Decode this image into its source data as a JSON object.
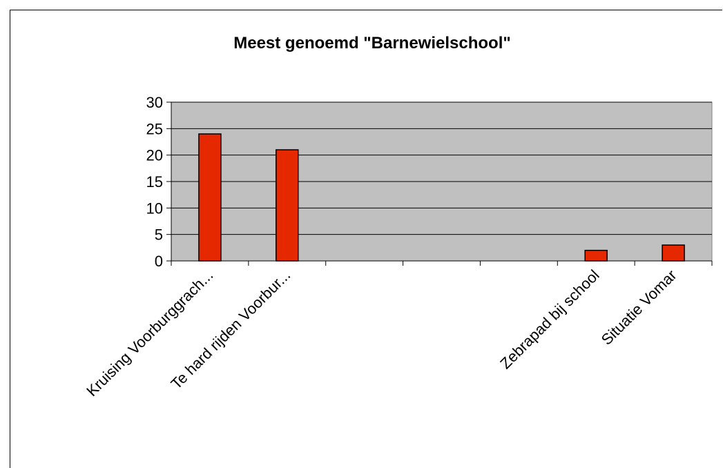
{
  "chart_data": {
    "type": "bar",
    "title": "Meest genoemd \"Barnewielschool\"",
    "categories": [
      "Kruising Voorburggrach...",
      "Te hard rijden Voorbur...",
      "",
      "",
      "",
      "Zebrapad bij school",
      "Situatie Vomar"
    ],
    "values": [
      24,
      21,
      0,
      0,
      0,
      2,
      3
    ],
    "xlabel": "",
    "ylabel": "",
    "ylim": [
      0,
      30
    ],
    "yticks": [
      0,
      5,
      10,
      15,
      20,
      25,
      30
    ],
    "grid": true,
    "legend": "none",
    "colors": {
      "bar": "#e62800",
      "plot_bg": "#c0c0c0",
      "grid": "#000000"
    }
  }
}
